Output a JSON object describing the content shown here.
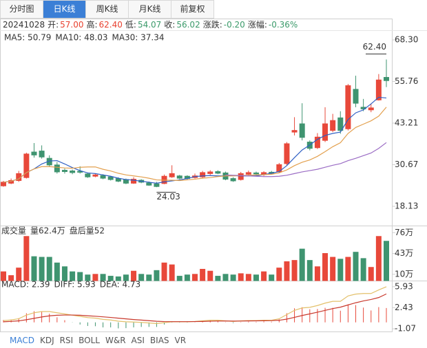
{
  "tabs": [
    "分时图",
    "日K线",
    "周K线",
    "月K线",
    "前复权"
  ],
  "active_tab": 1,
  "chart_data": {
    "type": "candlestick",
    "date": "20241028",
    "info": [
      {
        "label": "开:",
        "value": "57.00",
        "color": "#e8412f"
      },
      {
        "label": "高:",
        "value": "62.40",
        "color": "#e8412f"
      },
      {
        "label": "低:",
        "value": "54.07",
        "color": "#3b9a6a"
      },
      {
        "label": "收:",
        "value": "56.02",
        "color": "#3b9a6a"
      },
      {
        "label": "涨跌:",
        "value": "-0.20",
        "color": "#3b9a6a"
      },
      {
        "label": "涨幅:",
        "value": "-0.36%",
        "color": "#3b9a6a"
      }
    ],
    "open": [
      24.3,
      25.1,
      25.9,
      26.8,
      34.5,
      34.8,
      32.6,
      30.6,
      29.0,
      28.8,
      28.7,
      27.9,
      27.2,
      27.4,
      27.0,
      26.5,
      26.2,
      25.1,
      26.0,
      25.2,
      24.9,
      25.0,
      27.0,
      27.3,
      27.2,
      26.8,
      27.0,
      28.0,
      28.6,
      28.2,
      26.5,
      26.2,
      27.8,
      28.2,
      27.7,
      28.4,
      28.5,
      31.0,
      40.5,
      43.0,
      37.5,
      35.8,
      38.0,
      41.0,
      44.8,
      41.5,
      53.4,
      48.0,
      47.2,
      50.2,
      57.0
    ],
    "high": [
      25.8,
      26.5,
      28.8,
      34.3,
      37.2,
      36.5,
      33.5,
      31.5,
      29.5,
      29.2,
      30.2,
      28.3,
      28.0,
      27.8,
      27.3,
      26.9,
      26.5,
      26.9,
      26.3,
      25.6,
      25.5,
      27.7,
      30.5,
      27.6,
      27.5,
      28.0,
      28.8,
      29.0,
      29.0,
      28.6,
      26.9,
      28.5,
      28.9,
      28.6,
      28.7,
      28.8,
      31.2,
      37.5,
      45.0,
      49.2,
      38.0,
      40.2,
      48.0,
      46.0,
      46.8,
      55.0,
      57.5,
      50.5,
      49.0,
      58.0,
      62.4
    ],
    "low": [
      24.03,
      24.8,
      25.5,
      26.5,
      32.8,
      32.5,
      30.0,
      28.0,
      28.0,
      27.8,
      28.0,
      26.7,
      26.9,
      26.3,
      25.9,
      25.4,
      24.8,
      24.9,
      25.1,
      24.3,
      23.9,
      24.8,
      26.7,
      26.3,
      26.2,
      26.5,
      26.7,
      27.6,
      27.8,
      26.0,
      25.5,
      25.9,
      27.5,
      27.4,
      27.3,
      27.7,
      28.3,
      30.5,
      39.5,
      38.0,
      35.0,
      35.4,
      37.5,
      40.5,
      40.0,
      41.0,
      48.0,
      46.8,
      46.5,
      50.0,
      54.07
    ],
    "close": [
      25.4,
      25.9,
      28.0,
      33.9,
      33.6,
      33.0,
      30.6,
      28.5,
      28.6,
      28.3,
      28.4,
      27.0,
      27.6,
      26.6,
      26.2,
      25.7,
      25.1,
      26.3,
      25.4,
      24.5,
      24.1,
      27.2,
      28.0,
      26.6,
      26.5,
      27.3,
      28.3,
      28.5,
      28.1,
      26.3,
      25.8,
      28.0,
      28.3,
      27.9,
      28.3,
      28.0,
      30.7,
      37.0,
      41.0,
      38.9,
      35.6,
      39.0,
      43.0,
      44.0,
      41.0,
      54.5,
      49.2,
      47.5,
      47.8,
      56.22,
      56.02
    ],
    "up_color": "#e8483a",
    "down_color": "#3f9470",
    "ylim": [
      12.53,
      70.37
    ],
    "yticks": [
      {
        "value": 68.3,
        "label": "68.30"
      },
      {
        "value": 55.76,
        "label": "55.76"
      },
      {
        "value": 43.21,
        "label": "43.21"
      },
      {
        "value": 30.67,
        "label": "30.67"
      },
      {
        "value": 18.13,
        "label": "18.13"
      }
    ],
    "ma_series": [
      {
        "name": "MA5: 50.79",
        "color": "#2f5fc4",
        "values": [
          25.4,
          25.7,
          26.4,
          28.3,
          29.4,
          30.9,
          31.8,
          31.9,
          30.9,
          29.8,
          28.9,
          28.2,
          28.0,
          27.6,
          27.2,
          26.6,
          26.2,
          26.0,
          25.7,
          25.4,
          25.1,
          25.5,
          25.8,
          26.1,
          26.5,
          27.1,
          27.3,
          27.4,
          27.3,
          27.3,
          27.4,
          27.3,
          27.3,
          27.3,
          27.7,
          28.1,
          28.6,
          30.4,
          32.8,
          35.1,
          36.6,
          38.3,
          39.5,
          40.1,
          40.5,
          44.3,
          46.3,
          47.2,
          49.0,
          51.0,
          50.79
        ]
      },
      {
        "name": "MA10: 48.03",
        "color": "#e3a04e",
        "values": [
          25.4,
          25.7,
          26.4,
          28.3,
          29.4,
          30.1,
          30.1,
          29.9,
          29.7,
          29.6,
          29.9,
          30.0,
          30.0,
          29.3,
          28.8,
          28.1,
          27.6,
          27.3,
          27.0,
          26.6,
          26.1,
          26.0,
          26.0,
          25.9,
          26.1,
          26.3,
          26.6,
          26.8,
          27.1,
          27.3,
          27.3,
          27.4,
          27.5,
          27.6,
          27.7,
          27.8,
          28.2,
          29.1,
          30.4,
          31.4,
          32.1,
          33.2,
          34.6,
          36.1,
          37.3,
          40.1,
          41.9,
          42.9,
          43.9,
          45.3,
          48.03
        ]
      },
      {
        "name": "MA30: 37.34",
        "color": "#9a6bc4",
        "values": [
          null,
          null,
          null,
          null,
          null,
          null,
          null,
          null,
          null,
          null,
          null,
          null,
          null,
          null,
          null,
          null,
          null,
          null,
          null,
          null,
          null,
          null,
          null,
          null,
          null,
          null,
          null,
          null,
          null,
          27.6,
          27.5,
          27.4,
          27.3,
          27.2,
          27.1,
          27.1,
          27.2,
          27.5,
          28.0,
          28.5,
          28.9,
          29.3,
          29.9,
          30.5,
          31.0,
          31.9,
          32.6,
          33.4,
          34.2,
          35.6,
          37.34
        ]
      }
    ],
    "annotations": [
      {
        "value": 62.4,
        "label": "62.40"
      },
      {
        "value": 24.03,
        "label": "24.03"
      }
    ],
    "volume": {
      "title": "成交量",
      "texts": [
        "量62.4万",
        "盘后量52"
      ],
      "values": [
        14,
        8,
        20,
        70,
        38,
        37,
        37,
        28,
        22,
        14,
        13,
        9,
        10,
        10,
        7,
        6,
        9,
        15,
        10,
        9,
        16,
        28,
        25,
        7,
        9,
        10,
        18,
        15,
        7,
        10,
        9,
        11,
        10,
        9,
        14,
        9,
        20,
        30,
        32,
        50,
        32,
        22,
        43,
        37,
        34,
        37,
        45,
        35,
        21,
        70,
        62.4
      ],
      "ylim": [
        0,
        85
      ],
      "yticks": [
        {
          "value": 76,
          "label": "76万"
        },
        {
          "value": 43,
          "label": "43万"
        },
        {
          "value": 10,
          "label": "10万"
        }
      ]
    },
    "macd": {
      "series": [
        {
          "name": "MACD: 2.39",
          "color": "#333333",
          "values": [
            0.4,
            0.48,
            0.7,
            1.52,
            1.86,
            1.8,
            1.44,
            0.84,
            0.36,
            -0.04,
            -0.36,
            -0.6,
            -0.64,
            -0.84,
            -0.84,
            -1.0,
            -0.96,
            -0.84,
            -0.76,
            -0.76,
            -0.76,
            -0.36,
            -0.04,
            -0.04,
            -0.04,
            0.04,
            0.2,
            0.32,
            0.26,
            0.04,
            -0.12,
            0.06,
            0.12,
            0.1,
            0.16,
            0.12,
            0.5,
            1.52,
            2.34,
            2.52,
            2.18,
            2.22,
            2.42,
            2.42,
            1.94,
            3.0,
            2.88,
            2.46,
            1.98,
            2.54,
            2.39
          ]
        },
        {
          "name": "DIFF: 5.93",
          "color": "#e3c06a",
          "values": [
            0.3,
            0.4,
            0.6,
            1.2,
            1.6,
            1.8,
            1.8,
            1.6,
            1.4,
            1.2,
            1.0,
            0.8,
            0.7,
            0.5,
            0.4,
            0.2,
            0.1,
            0.05,
            0.0,
            -0.1,
            -0.2,
            -0.05,
            0.1,
            0.1,
            0.1,
            0.15,
            0.25,
            0.35,
            0.35,
            0.25,
            0.15,
            0.25,
            0.3,
            0.3,
            0.35,
            0.35,
            0.6,
            1.3,
            2.0,
            2.4,
            2.5,
            2.8,
            3.2,
            3.5,
            3.5,
            4.4,
            4.7,
            4.8,
            4.8,
            5.4,
            5.93
          ]
        },
        {
          "name": "DEA: 4.73",
          "color": "#c8382b",
          "values": [
            0.1,
            0.16,
            0.25,
            0.44,
            0.67,
            0.9,
            1.08,
            1.18,
            1.22,
            1.22,
            1.18,
            1.1,
            1.02,
            0.92,
            0.82,
            0.7,
            0.58,
            0.47,
            0.38,
            0.28,
            0.18,
            0.13,
            0.12,
            0.12,
            0.12,
            0.13,
            0.15,
            0.19,
            0.22,
            0.23,
            0.21,
            0.22,
            0.24,
            0.25,
            0.27,
            0.29,
            0.35,
            0.54,
            0.83,
            1.14,
            1.41,
            1.69,
            1.99,
            2.29,
            2.53,
            2.9,
            3.26,
            3.57,
            3.81,
            4.13,
            4.73
          ]
        }
      ],
      "ylim": [
        -1.52,
        6.72
      ],
      "yticks": [
        {
          "value": 5.93,
          "label": "5.93"
        },
        {
          "value": 2.43,
          "label": "2.43"
        },
        {
          "value": -1.07,
          "label": "-1.07"
        }
      ]
    }
  },
  "indicator_tabs": [
    "MACD",
    "KDJ",
    "RSI",
    "BOLL",
    "W&R",
    "ASI",
    "BIAS",
    "VR"
  ],
  "active_indicator": 0
}
